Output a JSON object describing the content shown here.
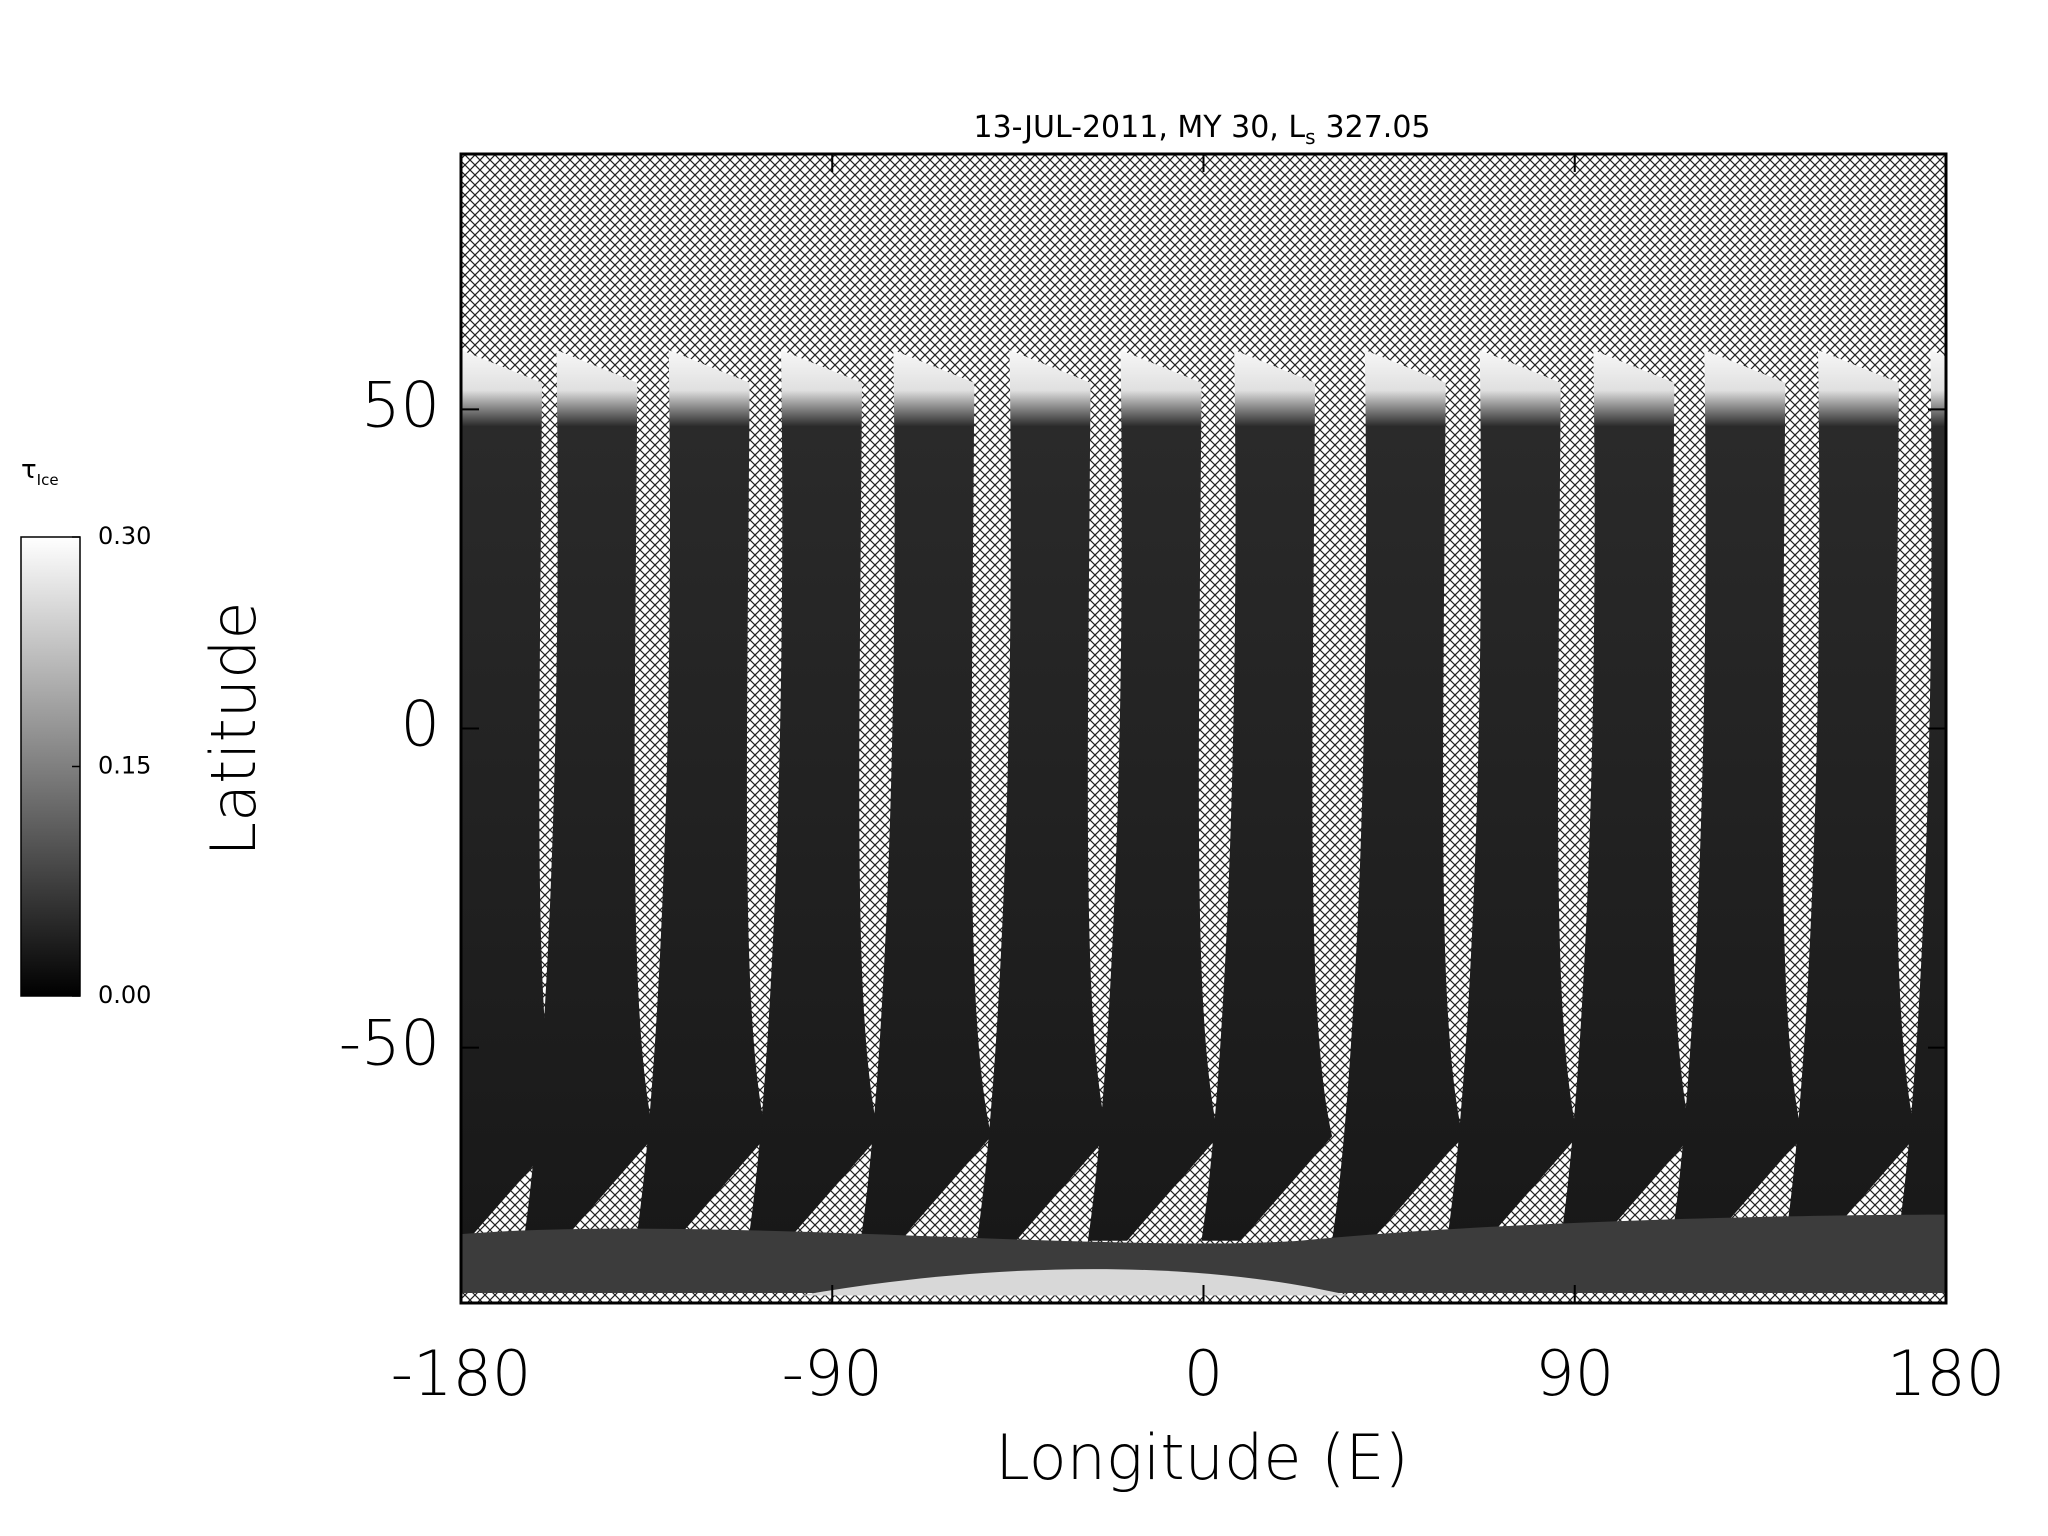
{
  "chart_data": {
    "type": "map",
    "title": "13-JUL-2011, MY 30,  L",
    "title_subscript": "s",
    "title_value": "327.05",
    "x_label": "Longitude (E)",
    "y_label": "Latitude",
    "xlim": [
      -180,
      180
    ],
    "xticks": [
      -180,
      -90,
      0,
      90,
      180
    ],
    "ylim": [
      -90,
      90
    ],
    "yticks": [
      -50,
      0,
      50
    ],
    "colorbar": {
      "label": "τ",
      "label_subscript": "Ice",
      "lim": [
        0,
        0.3
      ],
      "ticks": [
        {
          "value": 0,
          "label": "0.00"
        },
        {
          "value": 0.15,
          "label": "0.15"
        },
        {
          "value": 0.3,
          "label": "0.30"
        }
      ]
    }
  }
}
